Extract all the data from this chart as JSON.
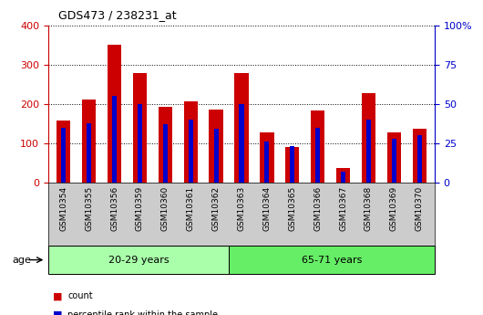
{
  "title": "GDS473 / 238231_at",
  "samples": [
    "GSM10354",
    "GSM10355",
    "GSM10356",
    "GSM10359",
    "GSM10360",
    "GSM10361",
    "GSM10362",
    "GSM10363",
    "GSM10364",
    "GSM10365",
    "GSM10366",
    "GSM10367",
    "GSM10368",
    "GSM10369",
    "GSM10370"
  ],
  "counts": [
    157,
    212,
    350,
    278,
    193,
    207,
    185,
    278,
    128,
    90,
    183,
    38,
    228,
    128,
    137
  ],
  "percentile_ranks": [
    35,
    38,
    55,
    50,
    37,
    40,
    34,
    50,
    26,
    23,
    35,
    7,
    40,
    28,
    30
  ],
  "group1_label": "20-29 years",
  "group1_count": 7,
  "group2_label": "65-71 years",
  "group2_count": 8,
  "age_label": "age",
  "left_axis_color": "#cc0000",
  "right_axis_color": "#0000cc",
  "bar_color": "#cc0000",
  "blue_bar_color": "#0000cc",
  "ylim_left": [
    0,
    400
  ],
  "ylim_right": [
    0,
    100
  ],
  "yticks_left": [
    0,
    100,
    200,
    300,
    400
  ],
  "yticks_right": [
    0,
    25,
    50,
    75,
    100
  ],
  "group1_bg": "#aaffaa",
  "group2_bg": "#66ee66",
  "tick_bg": "#cccccc",
  "legend_count_label": "count",
  "legend_pct_label": "percentile rank within the sample",
  "bar_width": 0.55,
  "blue_bar_width": 0.18
}
